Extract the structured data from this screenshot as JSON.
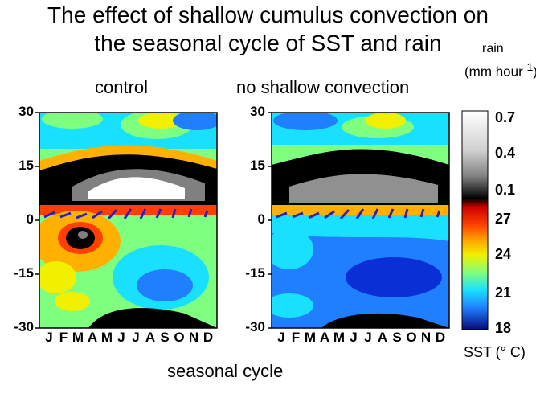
{
  "title": {
    "line1": "The effect of shallow cumulus convection on",
    "line2": "the seasonal cycle of SST and rain"
  },
  "rain_label": "rain",
  "rain_units": "(mm hour-1)",
  "xaxis_title": "seasonal cycle",
  "sst_label": "SST (° C)",
  "chart_data": {
    "type": "heatmap",
    "panels": [
      {
        "title": "control"
      },
      {
        "title": "no shallow convection"
      }
    ],
    "xlabel": "seasonal cycle",
    "x_ticks": [
      "J",
      "F",
      "M",
      "A",
      "M",
      "J",
      "J",
      "A",
      "S",
      "O",
      "N",
      "D"
    ],
    "y_ticks": [
      30,
      15,
      0,
      -15,
      -30
    ],
    "ylim": [
      -30,
      30
    ],
    "colorbar": {
      "rain_ticks": [
        "0.7",
        "0.4",
        "0.1"
      ],
      "sst_ticks": [
        "27",
        "24",
        "21",
        "18"
      ],
      "rain_label": "rain",
      "rain_units": "(mm hour-1)",
      "sst_label": "SST (° C)"
    },
    "colors": {
      "sst_scale": [
        "#0a0a7a",
        "#0b2fd6",
        "#1f7fff",
        "#19e0ff",
        "#7fff7f",
        "#f0f000",
        "#ffb000",
        "#ff4000",
        "#cc0000"
      ],
      "rain_scale": [
        "#000000",
        "#555555",
        "#999999",
        "#cccccc",
        "#ffffff"
      ],
      "wind_vectors": "#2323c8"
    }
  }
}
